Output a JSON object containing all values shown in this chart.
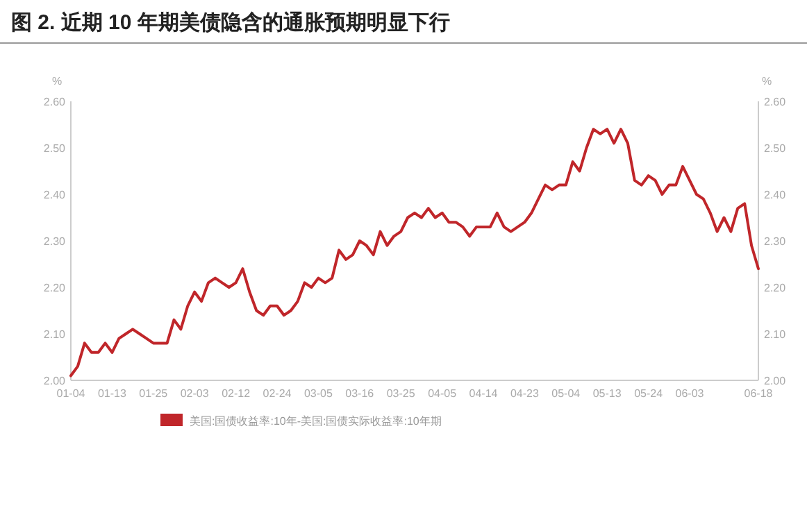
{
  "chart_data": {
    "type": "line",
    "title": "图 2. 近期 10 年期美债隐含的通胀预期明显下行",
    "ylabel": "%",
    "y2label": "%",
    "categories": [
      "01-04",
      null,
      null,
      null,
      null,
      null,
      "01-13",
      null,
      null,
      null,
      null,
      null,
      "01-25",
      null,
      null,
      null,
      null,
      null,
      "02-03",
      null,
      null,
      null,
      null,
      null,
      "02-12",
      null,
      null,
      null,
      null,
      null,
      "02-24",
      null,
      null,
      null,
      null,
      null,
      "03-05",
      null,
      null,
      null,
      null,
      null,
      "03-16",
      null,
      null,
      null,
      null,
      null,
      "03-25",
      null,
      null,
      null,
      null,
      null,
      "04-05",
      null,
      null,
      null,
      null,
      null,
      "04-14",
      null,
      null,
      null,
      null,
      null,
      "04-23",
      null,
      null,
      null,
      null,
      null,
      "05-04",
      null,
      null,
      null,
      null,
      null,
      "05-13",
      null,
      null,
      null,
      null,
      null,
      "05-24",
      null,
      null,
      null,
      null,
      null,
      "06-03",
      null,
      null,
      null,
      null,
      null,
      null,
      null,
      null,
      null,
      "06-18"
    ],
    "series": [
      {
        "name": "美国:国债收益率:10年-美国:国债实际收益率:10年期",
        "color": "#c0262a",
        "values": [
          2.01,
          2.03,
          2.08,
          2.06,
          2.06,
          2.08,
          2.06,
          2.09,
          2.1,
          2.11,
          2.1,
          2.09,
          2.08,
          2.08,
          2.08,
          2.13,
          2.11,
          2.16,
          2.19,
          2.17,
          2.21,
          2.22,
          2.21,
          2.2,
          2.21,
          2.24,
          2.19,
          2.15,
          2.14,
          2.16,
          2.16,
          2.14,
          2.15,
          2.17,
          2.21,
          2.2,
          2.22,
          2.21,
          2.22,
          2.28,
          2.26,
          2.27,
          2.3,
          2.29,
          2.27,
          2.32,
          2.29,
          2.31,
          2.32,
          2.35,
          2.36,
          2.35,
          2.37,
          2.35,
          2.36,
          2.34,
          2.34,
          2.33,
          2.31,
          2.33,
          2.33,
          2.33,
          2.36,
          2.33,
          2.32,
          2.33,
          2.34,
          2.36,
          2.39,
          2.42,
          2.41,
          2.42,
          2.42,
          2.47,
          2.45,
          2.5,
          2.54,
          2.53,
          2.54,
          2.51,
          2.54,
          2.51,
          2.43,
          2.42,
          2.44,
          2.43,
          2.4,
          2.42,
          2.42,
          2.46,
          2.43,
          2.4,
          2.39,
          2.36,
          2.32,
          2.35,
          2.32,
          2.37,
          2.38,
          2.29,
          2.24
        ]
      }
    ],
    "ylim": [
      2.0,
      2.6
    ],
    "yticks": [
      {
        "value": 2.0,
        "label": "2.00"
      },
      {
        "value": 2.1,
        "label": "2.10"
      },
      {
        "value": 2.2,
        "label": "2.20"
      },
      {
        "value": 2.3,
        "label": "2.30"
      },
      {
        "value": 2.4,
        "label": "2.40"
      },
      {
        "value": 2.5,
        "label": "2.50"
      },
      {
        "value": 2.6,
        "label": "2.60"
      }
    ],
    "y2lim": [
      2.0,
      2.6
    ],
    "y2ticks": [
      {
        "value": 2.0,
        "label": "2.00"
      },
      {
        "value": 2.1,
        "label": "2.10"
      },
      {
        "value": 2.2,
        "label": "2.20"
      },
      {
        "value": 2.3,
        "label": "2.30"
      },
      {
        "value": 2.4,
        "label": "2.40"
      },
      {
        "value": 2.5,
        "label": "2.50"
      },
      {
        "value": 2.6,
        "label": "2.60"
      }
    ],
    "legend": "bottom"
  }
}
